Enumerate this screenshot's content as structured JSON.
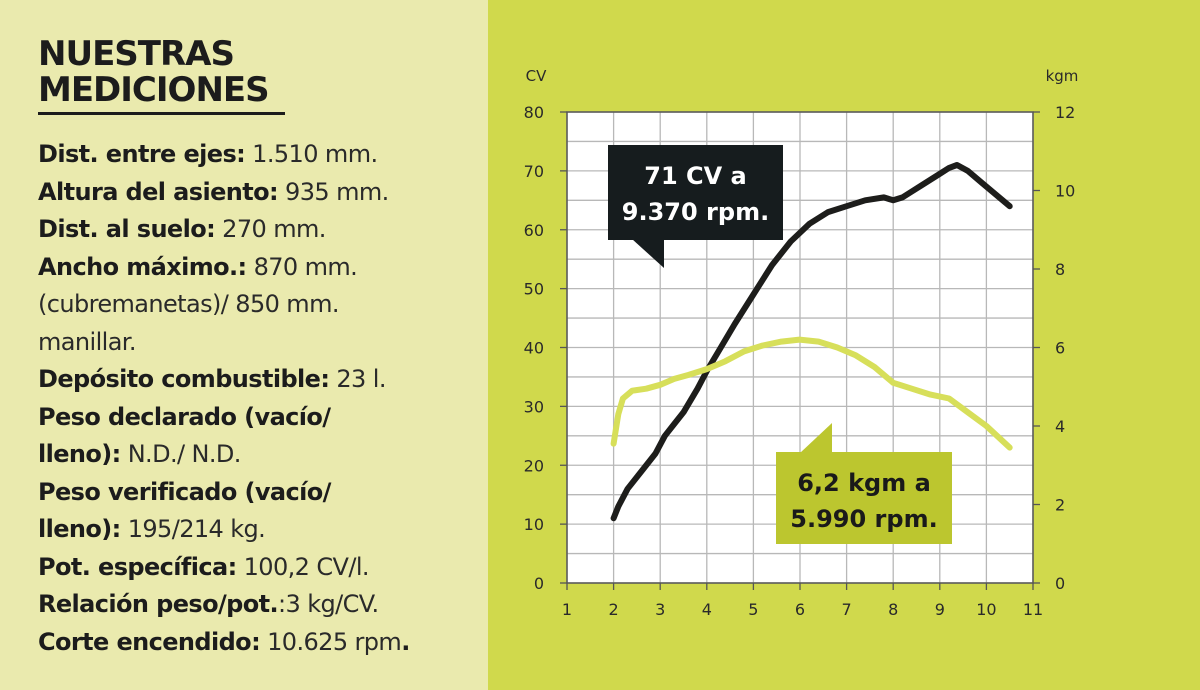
{
  "panel": {
    "title_line1": "NUESTRAS",
    "title_line2": "MEDICIONES",
    "specs": [
      [
        {
          "b": "Dist. entre ejes:",
          "v": " 1.510 mm."
        }
      ],
      [
        {
          "b": "Altura del asiento:",
          "v": " 935 mm."
        }
      ],
      [
        {
          "b": "Dist. al suelo:",
          "v": " 270 mm."
        }
      ],
      [
        {
          "b": "Ancho máximo.:",
          "v": " 870 mm."
        }
      ],
      [
        {
          "b": "",
          "v": "(cubremanetas)/ 850 mm."
        }
      ],
      [
        {
          "b": "",
          "v": "manillar."
        }
      ],
      [
        {
          "b": "Depósito combustible:",
          "v": " 23 l."
        }
      ],
      [
        {
          "b": "Peso declarado (vacío/",
          "v": ""
        }
      ],
      [
        {
          "b": "lleno):",
          "v": " N.D./ N.D."
        }
      ],
      [
        {
          "b": "Peso verificado (vacío/",
          "v": ""
        }
      ],
      [
        {
          "b": "lleno):",
          "v": " 195/214 kg."
        }
      ],
      [
        {
          "b": "Pot. específica:",
          "v": " 100,2 CV/l."
        }
      ],
      [
        {
          "b": "Relación peso/pot.",
          "v": ":3 kg/CV."
        }
      ],
      [
        {
          "b": "Corte encendido:",
          "v": " 10.625 rpm",
          "b2": "."
        }
      ]
    ]
  },
  "chart_data": {
    "type": "line",
    "xlabel": "",
    "y_left_label": "CV",
    "y_right_label": "kgm",
    "xlim": [
      1,
      11
    ],
    "ylim_left": [
      0,
      80
    ],
    "ylim_right": [
      0,
      12
    ],
    "x_ticks": [
      1,
      2,
      3,
      4,
      5,
      6,
      7,
      8,
      9,
      10,
      11
    ],
    "y_left_ticks": [
      0,
      10,
      20,
      30,
      40,
      50,
      60,
      70,
      80
    ],
    "y_right_ticks": [
      0,
      2,
      4,
      6,
      8,
      10,
      12
    ],
    "grid": true,
    "colors": {
      "power": "#1d1d1b",
      "torque": "#d7df5a",
      "power_callout": "#161c1e",
      "torque_callout": "#bcc62f"
    },
    "series": [
      {
        "axis": "left",
        "x": [
          2.0,
          2.1,
          2.3,
          2.6,
          2.9,
          3.1,
          3.3,
          3.5,
          3.8,
          4.0,
          4.3,
          4.6,
          5.0,
          5.4,
          5.8,
          6.2,
          6.6,
          7.0,
          7.4,
          7.8,
          8.0,
          8.2,
          8.4,
          8.6,
          8.8,
          9.0,
          9.2,
          9.37,
          9.6,
          9.9,
          10.2,
          10.5
        ],
        "y": [
          11,
          13,
          16,
          19,
          22,
          25,
          27,
          29,
          33,
          36,
          40,
          44,
          49,
          54,
          58,
          61,
          63,
          64,
          65,
          65.5,
          65,
          65.5,
          66.5,
          67.5,
          68.5,
          69.5,
          70.5,
          71,
          70,
          68,
          66,
          64
        ]
      },
      {
        "axis": "right",
        "x": [
          2.0,
          2.1,
          2.2,
          2.4,
          2.7,
          3.0,
          3.3,
          3.6,
          4.0,
          4.4,
          4.8,
          5.2,
          5.6,
          5.99,
          6.4,
          6.8,
          7.2,
          7.6,
          8.0,
          8.4,
          8.8,
          9.2,
          9.6,
          10.0,
          10.5
        ],
        "y": [
          3.55,
          4.3,
          4.7,
          4.9,
          4.95,
          5.05,
          5.2,
          5.3,
          5.45,
          5.65,
          5.9,
          6.05,
          6.15,
          6.2,
          6.15,
          6.0,
          5.8,
          5.5,
          5.1,
          4.95,
          4.8,
          4.7,
          4.35,
          4.0,
          3.45
        ]
      }
    ],
    "annotations": [
      {
        "axis": "left",
        "x": 9.37,
        "y": 71,
        "line1": "71 CV a",
        "line2": "9.370 rpm."
      },
      {
        "axis": "right",
        "x": 5.99,
        "y": 6.2,
        "line1": "6,2 kgm a",
        "line2": "5.990 rpm."
      }
    ]
  }
}
